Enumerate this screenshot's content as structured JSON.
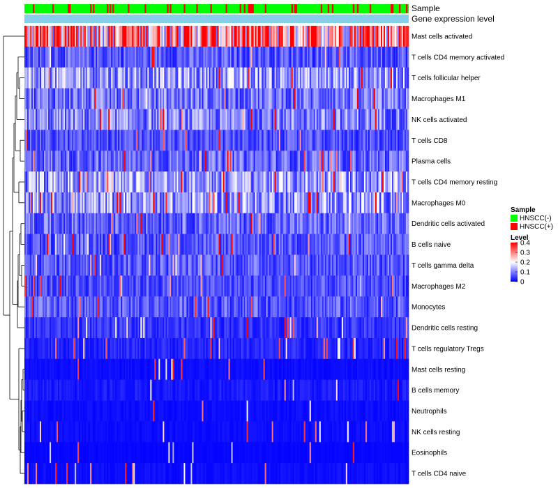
{
  "chart_data": {
    "type": "heatmap",
    "title": "",
    "annotation_rows": [
      "Sample",
      "Gene expression level"
    ],
    "row_labels": [
      "Mast cells activated",
      "T cells CD4 memory activated",
      "T cells follicular helper",
      "Macrophages M1",
      "NK cells activated",
      "T cells CD8",
      "Plasma cells",
      "T cells CD4 memory resting",
      "Macrophages M0",
      "Dendritic cells activated",
      "B cells naive",
      "T cells gamma delta",
      "Macrophages M2",
      "Monocytes",
      "Dendritic cells resting",
      "T cells regulatory  Tregs",
      "Mast cells resting",
      "B cells memory",
      "Neutrophils",
      "NK cells resting",
      "Eosinophils",
      "T cells CD4 naive"
    ],
    "row_mean_levels": [
      0.3,
      0.07,
      0.12,
      0.09,
      0.1,
      0.06,
      0.08,
      0.12,
      0.12,
      0.08,
      0.07,
      0.07,
      0.06,
      0.07,
      0.04,
      0.03,
      0.01,
      0.02,
      0.01,
      0.01,
      0.005,
      0.01
    ],
    "sample_count": 275,
    "sample_legend": {
      "title": "Sample",
      "entries": [
        {
          "label": "HNSCC(-)",
          "color": "#00ff00"
        },
        {
          "label": "HNSCC(+)",
          "color": "#ff0000"
        }
      ]
    },
    "level_legend": {
      "title": "Level",
      "ticks": [
        "0.4",
        "0.3",
        "0.2",
        "0.1",
        "0"
      ],
      "range": [
        0,
        0.4
      ],
      "colors": [
        "#0000ff",
        "#ffffff",
        "#ff0000"
      ]
    },
    "expression_bar_color": "#87ceeb"
  }
}
